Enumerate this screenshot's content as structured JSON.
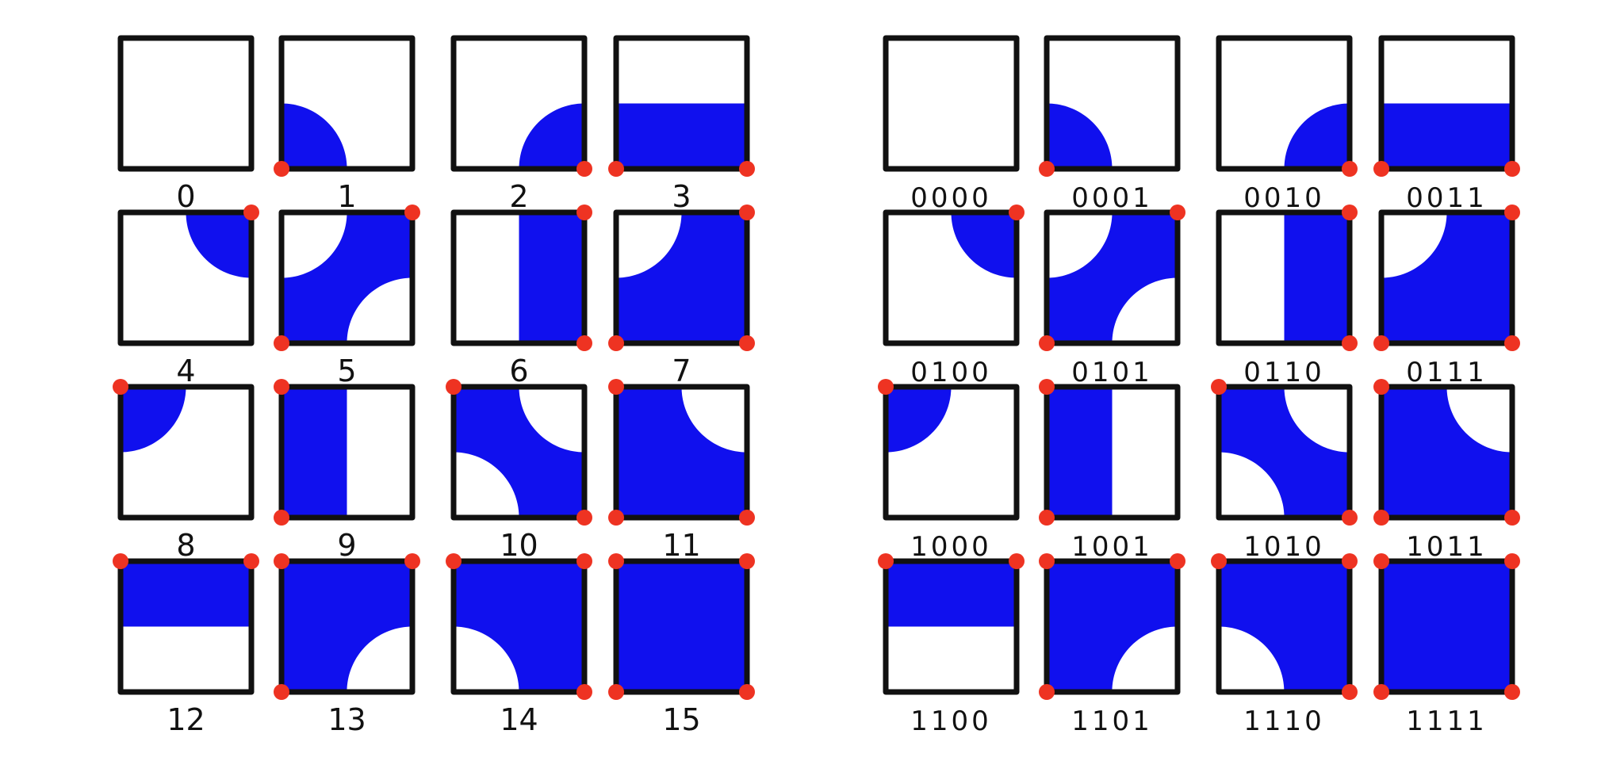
{
  "colors": {
    "fill": "#1010ee",
    "corner": "#ee3322",
    "stroke": "#111111",
    "background": "#ffffff"
  },
  "panels": [
    {
      "name": "decimal-panel",
      "cells": [
        {
          "label": "0",
          "bits": [
            0,
            0,
            0,
            0
          ]
        },
        {
          "label": "1",
          "bits": [
            0,
            0,
            0,
            1
          ]
        },
        {
          "label": "2",
          "bits": [
            0,
            0,
            1,
            0
          ]
        },
        {
          "label": "3",
          "bits": [
            0,
            0,
            1,
            1
          ]
        },
        {
          "label": "4",
          "bits": [
            0,
            1,
            0,
            0
          ]
        },
        {
          "label": "5",
          "bits": [
            0,
            1,
            0,
            1
          ]
        },
        {
          "label": "6",
          "bits": [
            0,
            1,
            1,
            0
          ]
        },
        {
          "label": "7",
          "bits": [
            0,
            1,
            1,
            1
          ]
        },
        {
          "label": "8",
          "bits": [
            1,
            0,
            0,
            0
          ]
        },
        {
          "label": "9",
          "bits": [
            1,
            0,
            0,
            1
          ]
        },
        {
          "label": "10",
          "bits": [
            1,
            0,
            1,
            0
          ]
        },
        {
          "label": "11",
          "bits": [
            1,
            0,
            1,
            1
          ]
        },
        {
          "label": "12",
          "bits": [
            1,
            1,
            0,
            0
          ]
        },
        {
          "label": "13",
          "bits": [
            1,
            1,
            0,
            1
          ]
        },
        {
          "label": "14",
          "bits": [
            1,
            1,
            1,
            0
          ]
        },
        {
          "label": "15",
          "bits": [
            1,
            1,
            1,
            1
          ]
        }
      ]
    },
    {
      "name": "binary-panel",
      "cells": [
        {
          "label": "0000",
          "bits": [
            0,
            0,
            0,
            0
          ]
        },
        {
          "label": "0001",
          "bits": [
            0,
            0,
            0,
            1
          ]
        },
        {
          "label": "0010",
          "bits": [
            0,
            0,
            1,
            0
          ]
        },
        {
          "label": "0011",
          "bits": [
            0,
            0,
            1,
            1
          ]
        },
        {
          "label": "0100",
          "bits": [
            0,
            1,
            0,
            0
          ]
        },
        {
          "label": "0101",
          "bits": [
            0,
            1,
            0,
            1
          ]
        },
        {
          "label": "0110",
          "bits": [
            0,
            1,
            1,
            0
          ]
        },
        {
          "label": "0111",
          "bits": [
            0,
            1,
            1,
            1
          ]
        },
        {
          "label": "1000",
          "bits": [
            1,
            0,
            0,
            0
          ]
        },
        {
          "label": "1001",
          "bits": [
            1,
            0,
            0,
            1
          ]
        },
        {
          "label": "1010",
          "bits": [
            1,
            0,
            1,
            0
          ]
        },
        {
          "label": "1011",
          "bits": [
            1,
            0,
            1,
            1
          ]
        },
        {
          "label": "1100",
          "bits": [
            1,
            1,
            0,
            0
          ]
        },
        {
          "label": "1101",
          "bits": [
            1,
            1,
            0,
            1
          ]
        },
        {
          "label": "1110",
          "bits": [
            1,
            1,
            1,
            0
          ]
        },
        {
          "label": "1111",
          "bits": [
            1,
            1,
            1,
            1
          ]
        }
      ]
    }
  ]
}
